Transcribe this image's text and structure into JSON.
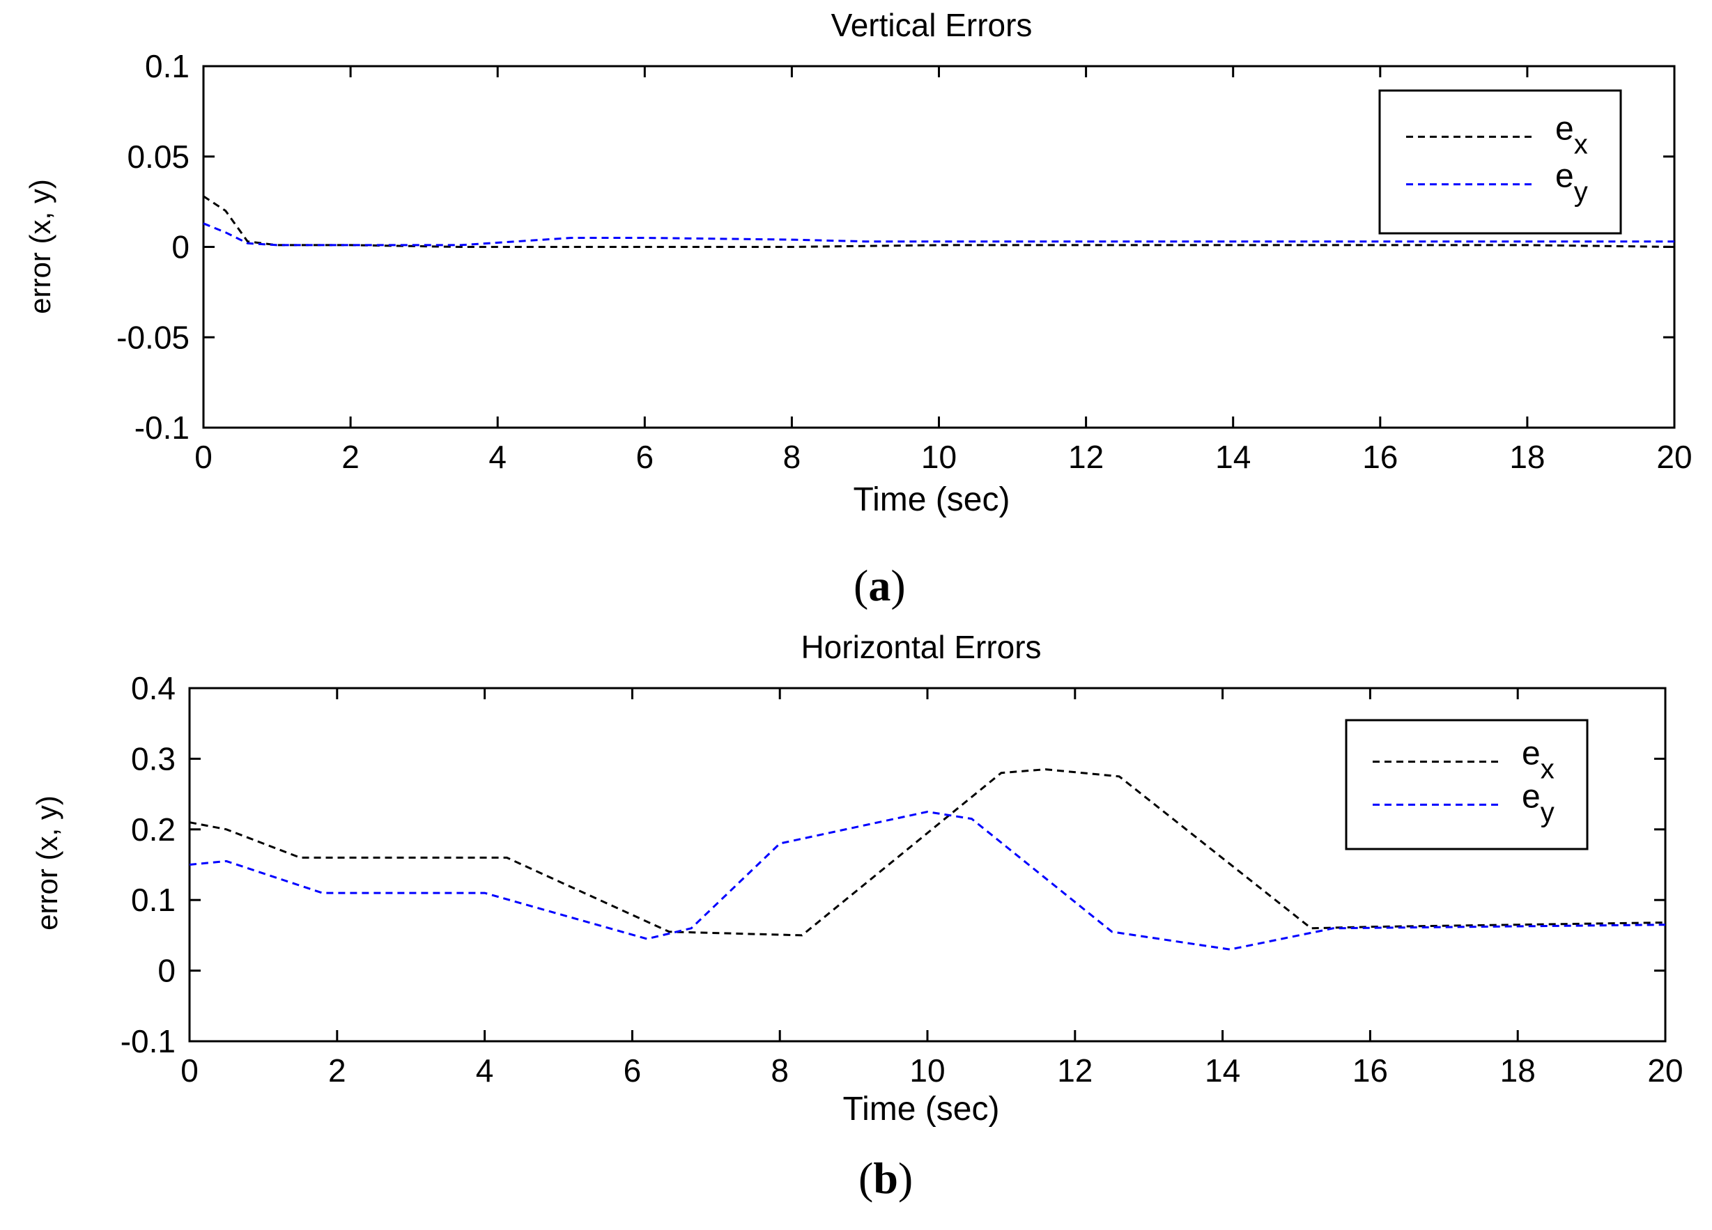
{
  "chart_data": [
    {
      "type": "line",
      "title": "Vertical Errors",
      "xlabel": "Time (sec)",
      "ylabel": "error (x, y)",
      "xlim": [
        0,
        20
      ],
      "ylim": [
        -0.1,
        0.1
      ],
      "xticks": [
        "0",
        "2",
        "4",
        "6",
        "8",
        "10",
        "12",
        "14",
        "16",
        "18",
        "20"
      ],
      "yticks": [
        "-0.1",
        "-0.05",
        "0",
        "0.05",
        "0.1"
      ],
      "grid": false,
      "legend_position": "top-right",
      "panel_label": "a",
      "series": [
        {
          "name": "e",
          "subscript": "x",
          "color": "#000000",
          "x": [
            0,
            0.3,
            0.6,
            1.0,
            2.0,
            3.5,
            5,
            8,
            10,
            12,
            14,
            16,
            18,
            20
          ],
          "y": [
            0.028,
            0.02,
            0.003,
            0.001,
            0.001,
            0.0,
            0.0,
            0.0,
            0.001,
            0.001,
            0.001,
            0.001,
            0.001,
            0.0
          ]
        },
        {
          "name": "e",
          "subscript": "y",
          "color": "#0000ff",
          "x": [
            0,
            0.3,
            0.6,
            1.0,
            2.0,
            3.5,
            5.0,
            6.0,
            8.0,
            9.0,
            12,
            16,
            20
          ],
          "y": [
            0.013,
            0.008,
            0.002,
            0.001,
            0.001,
            0.001,
            0.005,
            0.005,
            0.004,
            0.003,
            0.003,
            0.003,
            0.003
          ]
        }
      ]
    },
    {
      "type": "line",
      "title": "Horizontal Errors",
      "xlabel": "Time (sec)",
      "ylabel": "error (x, y)",
      "xlim": [
        0,
        20
      ],
      "ylim": [
        -0.1,
        0.4
      ],
      "xticks": [
        "0",
        "2",
        "4",
        "6",
        "8",
        "10",
        "12",
        "14",
        "16",
        "18",
        "20"
      ],
      "yticks": [
        "-0.1",
        "0",
        "0.1",
        "0.2",
        "0.3",
        "0.4"
      ],
      "grid": false,
      "legend_position": "top-right",
      "panel_label": "b",
      "series": [
        {
          "name": "e",
          "subscript": "x",
          "color": "#000000",
          "x": [
            0,
            0.5,
            1.5,
            4.3,
            6.5,
            8.3,
            11.0,
            11.6,
            12.6,
            15.2,
            16,
            18,
            20
          ],
          "y": [
            0.21,
            0.2,
            0.16,
            0.16,
            0.055,
            0.05,
            0.28,
            0.285,
            0.275,
            0.06,
            0.062,
            0.065,
            0.068
          ]
        },
        {
          "name": "e",
          "subscript": "y",
          "color": "#0000ff",
          "x": [
            0,
            0.5,
            1.8,
            4.0,
            6.2,
            6.8,
            8.0,
            10.0,
            10.6,
            12.5,
            14.1,
            15.5,
            20
          ],
          "y": [
            0.15,
            0.155,
            0.11,
            0.11,
            0.045,
            0.06,
            0.18,
            0.225,
            0.215,
            0.055,
            0.03,
            0.06,
            0.065
          ]
        }
      ]
    }
  ]
}
